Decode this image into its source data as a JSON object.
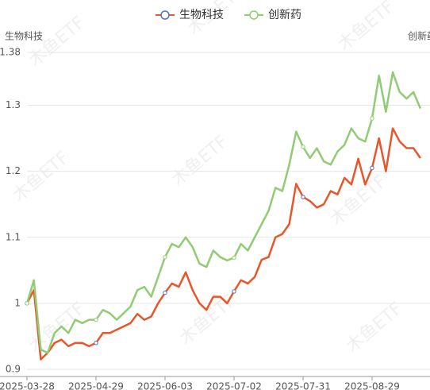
{
  "chart_data": {
    "type": "line",
    "watermark": "木鱼ETF",
    "y_label": "生物科技",
    "y2_label": "创新药",
    "categories": [
      "2025-03-28",
      null,
      null,
      null,
      null,
      null,
      null,
      null,
      null,
      null,
      "2025-04-29",
      null,
      null,
      null,
      null,
      null,
      null,
      null,
      null,
      null,
      "2025-06-03",
      null,
      null,
      null,
      null,
      null,
      null,
      null,
      null,
      null,
      "2025-07-02",
      null,
      null,
      null,
      null,
      null,
      null,
      null,
      null,
      null,
      "2025-07-31",
      null,
      null,
      null,
      null,
      null,
      null,
      null,
      null,
      null,
      "2025-08-29",
      null,
      null,
      null,
      null,
      null,
      null,
      null
    ],
    "series": [
      {
        "name": "生物科技",
        "color": "#e8562a",
        "marker_color": "#5470c6",
        "values": [
          1.0,
          1.02,
          0.915,
          0.925,
          0.94,
          0.945,
          0.935,
          0.94,
          0.94,
          0.935,
          0.94,
          0.955,
          0.955,
          0.96,
          0.965,
          0.97,
          0.984,
          0.975,
          0.98,
          1.0,
          1.016,
          1.03,
          1.025,
          1.047,
          1.02,
          1.0,
          0.99,
          1.01,
          1.01,
          1.0,
          1.018,
          1.035,
          1.03,
          1.04,
          1.066,
          1.07,
          1.1,
          1.105,
          1.12,
          1.181,
          1.161,
          1.155,
          1.145,
          1.15,
          1.17,
          1.165,
          1.19,
          1.18,
          1.219,
          1.18,
          1.205,
          1.25,
          1.2,
          1.265,
          1.245,
          1.235,
          1.235,
          1.22
        ]
      },
      {
        "name": "创新药",
        "color": "#91cc75",
        "marker_color": "#91cc75",
        "values": [
          1.0,
          1.035,
          0.93,
          0.925,
          0.955,
          0.965,
          0.955,
          0.975,
          0.97,
          0.975,
          0.975,
          0.99,
          0.985,
          0.975,
          0.985,
          0.995,
          1.02,
          1.025,
          1.01,
          1.04,
          1.07,
          1.09,
          1.085,
          1.1,
          1.085,
          1.06,
          1.055,
          1.08,
          1.07,
          1.065,
          1.069,
          1.09,
          1.08,
          1.1,
          1.12,
          1.14,
          1.175,
          1.17,
          1.21,
          1.26,
          1.237,
          1.22,
          1.235,
          1.215,
          1.21,
          1.23,
          1.24,
          1.265,
          1.25,
          1.245,
          1.28,
          1.345,
          1.29,
          1.35,
          1.32,
          1.31,
          1.32,
          1.295
        ]
      }
    ],
    "ylim": [
      0.9,
      1.38
    ],
    "yticks": [
      0.9,
      1,
      1.1,
      1.2,
      1.3,
      1.38
    ],
    "grid": true
  }
}
